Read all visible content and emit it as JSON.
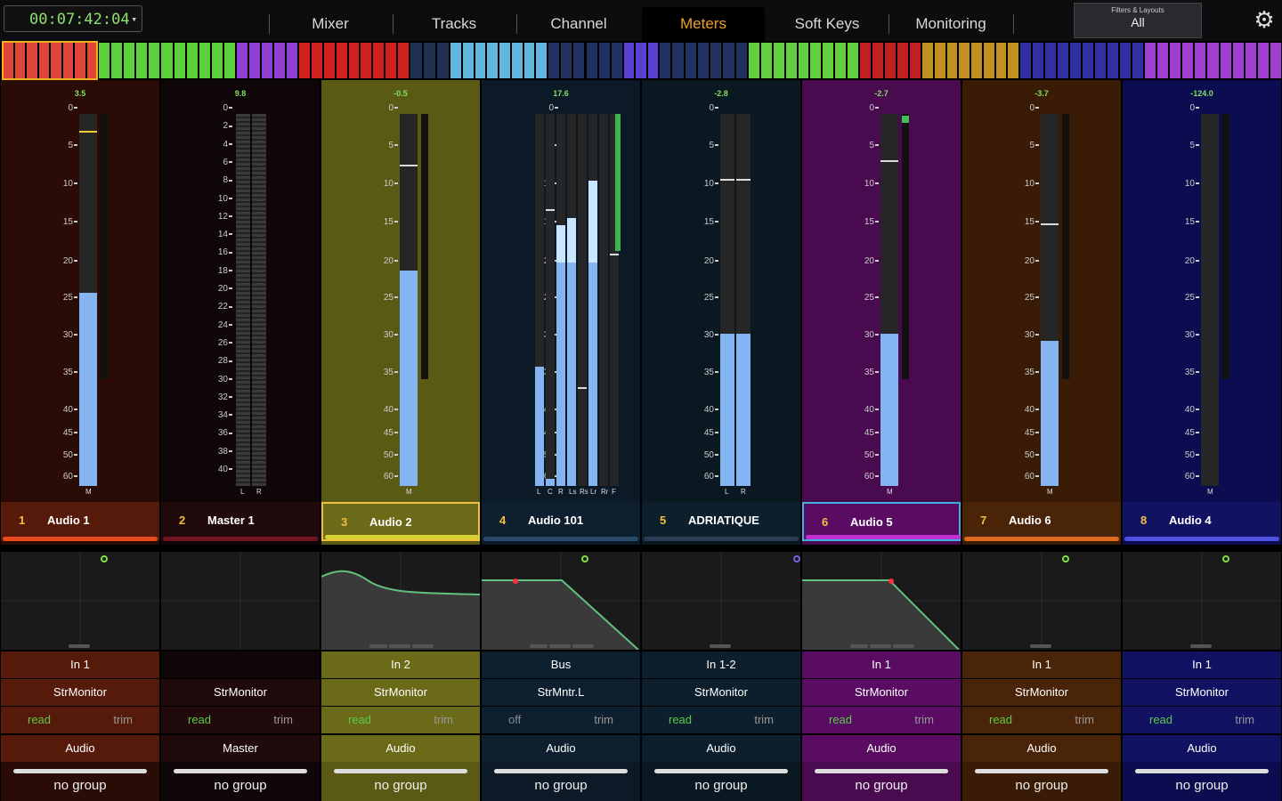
{
  "header": {
    "timecode": "00:07:42:04",
    "tabs": [
      {
        "label": "Mixer",
        "active": false
      },
      {
        "label": "Tracks",
        "active": false
      },
      {
        "label": "Channel",
        "active": false
      },
      {
        "label": "Meters",
        "active": true
      },
      {
        "label": "Soft Keys",
        "active": false
      },
      {
        "label": "Monitoring",
        "active": false
      }
    ],
    "filters_caption": "Filters & Layouts",
    "filters_value": "All",
    "settings_icon": "gear-icon"
  },
  "overview_colors": [
    "#e0453a",
    "#5ad03a",
    "#9040d0",
    "#d02020",
    "#203050",
    "#60b8e0",
    "#203060",
    "#5a40d0",
    "#203060",
    "#60d040",
    "#c02020",
    "#c09020",
    "#3030a0",
    "#a040d0"
  ],
  "scale_labels": [
    "0",
    "5",
    "10",
    "15",
    "20",
    "25",
    "30",
    "35",
    "40",
    "45",
    "50",
    "60"
  ],
  "master_scale_labels": [
    "0",
    "2",
    "4",
    "6",
    "8",
    "10",
    "12",
    "14",
    "16",
    "18",
    "20",
    "22",
    "24",
    "26",
    "28",
    "30",
    "32",
    "34",
    "36",
    "38",
    "40"
  ],
  "strips": [
    {
      "num": "1",
      "name": "Audio 1",
      "peak": "3.5",
      "bg": "#2a0b06",
      "row": "#551a0a",
      "accent": "#e84a20",
      "selected": false,
      "channels": [
        "M"
      ],
      "levels": [
        0.52
      ],
      "peakholds": [
        0.95
      ],
      "eq": "flat",
      "eqdot": "#80e040",
      "input": "In 1",
      "insert": "StrMonitor",
      "auto": "read",
      "autoOff": false,
      "trim": "trim",
      "type": "Audio",
      "group": "no group"
    },
    {
      "num": "2",
      "name": "Master 1",
      "peak": "9.8",
      "bg": "#0e0607",
      "row": "#200a0c",
      "accent": "#701520",
      "selected": false,
      "channels": [
        "L",
        "R"
      ],
      "levels": [
        0,
        0
      ],
      "peakholds": [
        1,
        1
      ],
      "eq": "none",
      "eqdot": "",
      "input": "",
      "insert": "StrMonitor",
      "auto": "read",
      "autoOff": false,
      "trim": "trim",
      "type": "Master",
      "group": "no group"
    },
    {
      "num": "3",
      "name": "Audio 2",
      "peak": "-0.5",
      "bg": "#5a5a14",
      "row": "#6a6a18",
      "accent": "#d8d030",
      "selected": true,
      "channels": [
        "M"
      ],
      "levels": [
        0.58
      ],
      "peakholds": [
        0.86
      ],
      "eq": "shelf",
      "eqdot": "",
      "input": "In 2",
      "insert": "StrMonitor",
      "auto": "read",
      "autoOff": false,
      "trim": "trim",
      "type": "Audio",
      "group": "no group"
    },
    {
      "num": "4",
      "name": "Audio 101",
      "peak": "17.6",
      "bg": "#0c1a28",
      "row": "#0e2030",
      "accent": "#2a4a6a",
      "selected": false,
      "channels": [
        "L",
        "C",
        "R",
        "Ls",
        "Rs",
        "Lr",
        "Rr",
        "F"
      ],
      "levels": [
        0.32,
        0.02,
        0.7,
        0.72,
        0.0,
        0.82,
        0,
        0
      ],
      "peakholds": [
        1,
        0.74,
        1,
        1,
        0.26,
        1,
        1,
        0.62
      ],
      "eq": "lowpass",
      "eqdot": "#80e040",
      "input": "Bus",
      "insert": "StrMntr.L",
      "auto": "off",
      "autoOff": true,
      "trim": "trim",
      "type": "Audio",
      "group": "no group"
    },
    {
      "num": "5",
      "name": "ADRIATIQUE",
      "peak": "-2.8",
      "bg": "#0a1822",
      "row": "#0d1f2c",
      "accent": "#2a3d55",
      "selected": false,
      "channels": [
        "L",
        "R"
      ],
      "levels": [
        0.41,
        0.41
      ],
      "peakholds": [
        0.82,
        0.82
      ],
      "eq": "flat",
      "eqdot": "#7060e0",
      "input": "In 1-2",
      "insert": "StrMonitor",
      "auto": "read",
      "autoOff": false,
      "trim": "trim",
      "type": "Audio",
      "group": "no group"
    },
    {
      "num": "6",
      "name": "Audio 5",
      "peak": "-2.7",
      "bg": "#4a0a50",
      "row": "#5a0c62",
      "accent": "#c030d0",
      "selected": true,
      "channels": [
        "M"
      ],
      "levels": [
        0.41
      ],
      "peakholds": [
        0.87
      ],
      "eq": "lowpass2",
      "eqdot": "",
      "input": "In 1",
      "insert": "StrMonitor",
      "auto": "read",
      "autoOff": false,
      "trim": "trim",
      "type": "Audio",
      "group": "no group"
    },
    {
      "num": "7",
      "name": "Audio 6",
      "peak": "-3.7",
      "bg": "#3a1c06",
      "row": "#4a2408",
      "accent": "#e06a20",
      "selected": false,
      "channels": [
        "M"
      ],
      "levels": [
        0.39
      ],
      "peakholds": [
        0.7
      ],
      "eq": "flat",
      "eqdot": "#80e040",
      "input": "In 1",
      "insert": "StrMonitor",
      "auto": "read",
      "autoOff": false,
      "trim": "trim",
      "type": "Audio",
      "group": "no group"
    },
    {
      "num": "8",
      "name": "Audio 4",
      "peak": "-124.0",
      "bg": "#0c0c50",
      "row": "#121262",
      "accent": "#5050e0",
      "selected": false,
      "channels": [
        "M"
      ],
      "levels": [
        0
      ],
      "peakholds": [
        1
      ],
      "eq": "flat",
      "eqdot": "#80e040",
      "input": "In 1",
      "insert": "StrMonitor",
      "auto": "read",
      "autoOff": false,
      "trim": "trim",
      "type": "Audio",
      "group": "no group"
    }
  ]
}
